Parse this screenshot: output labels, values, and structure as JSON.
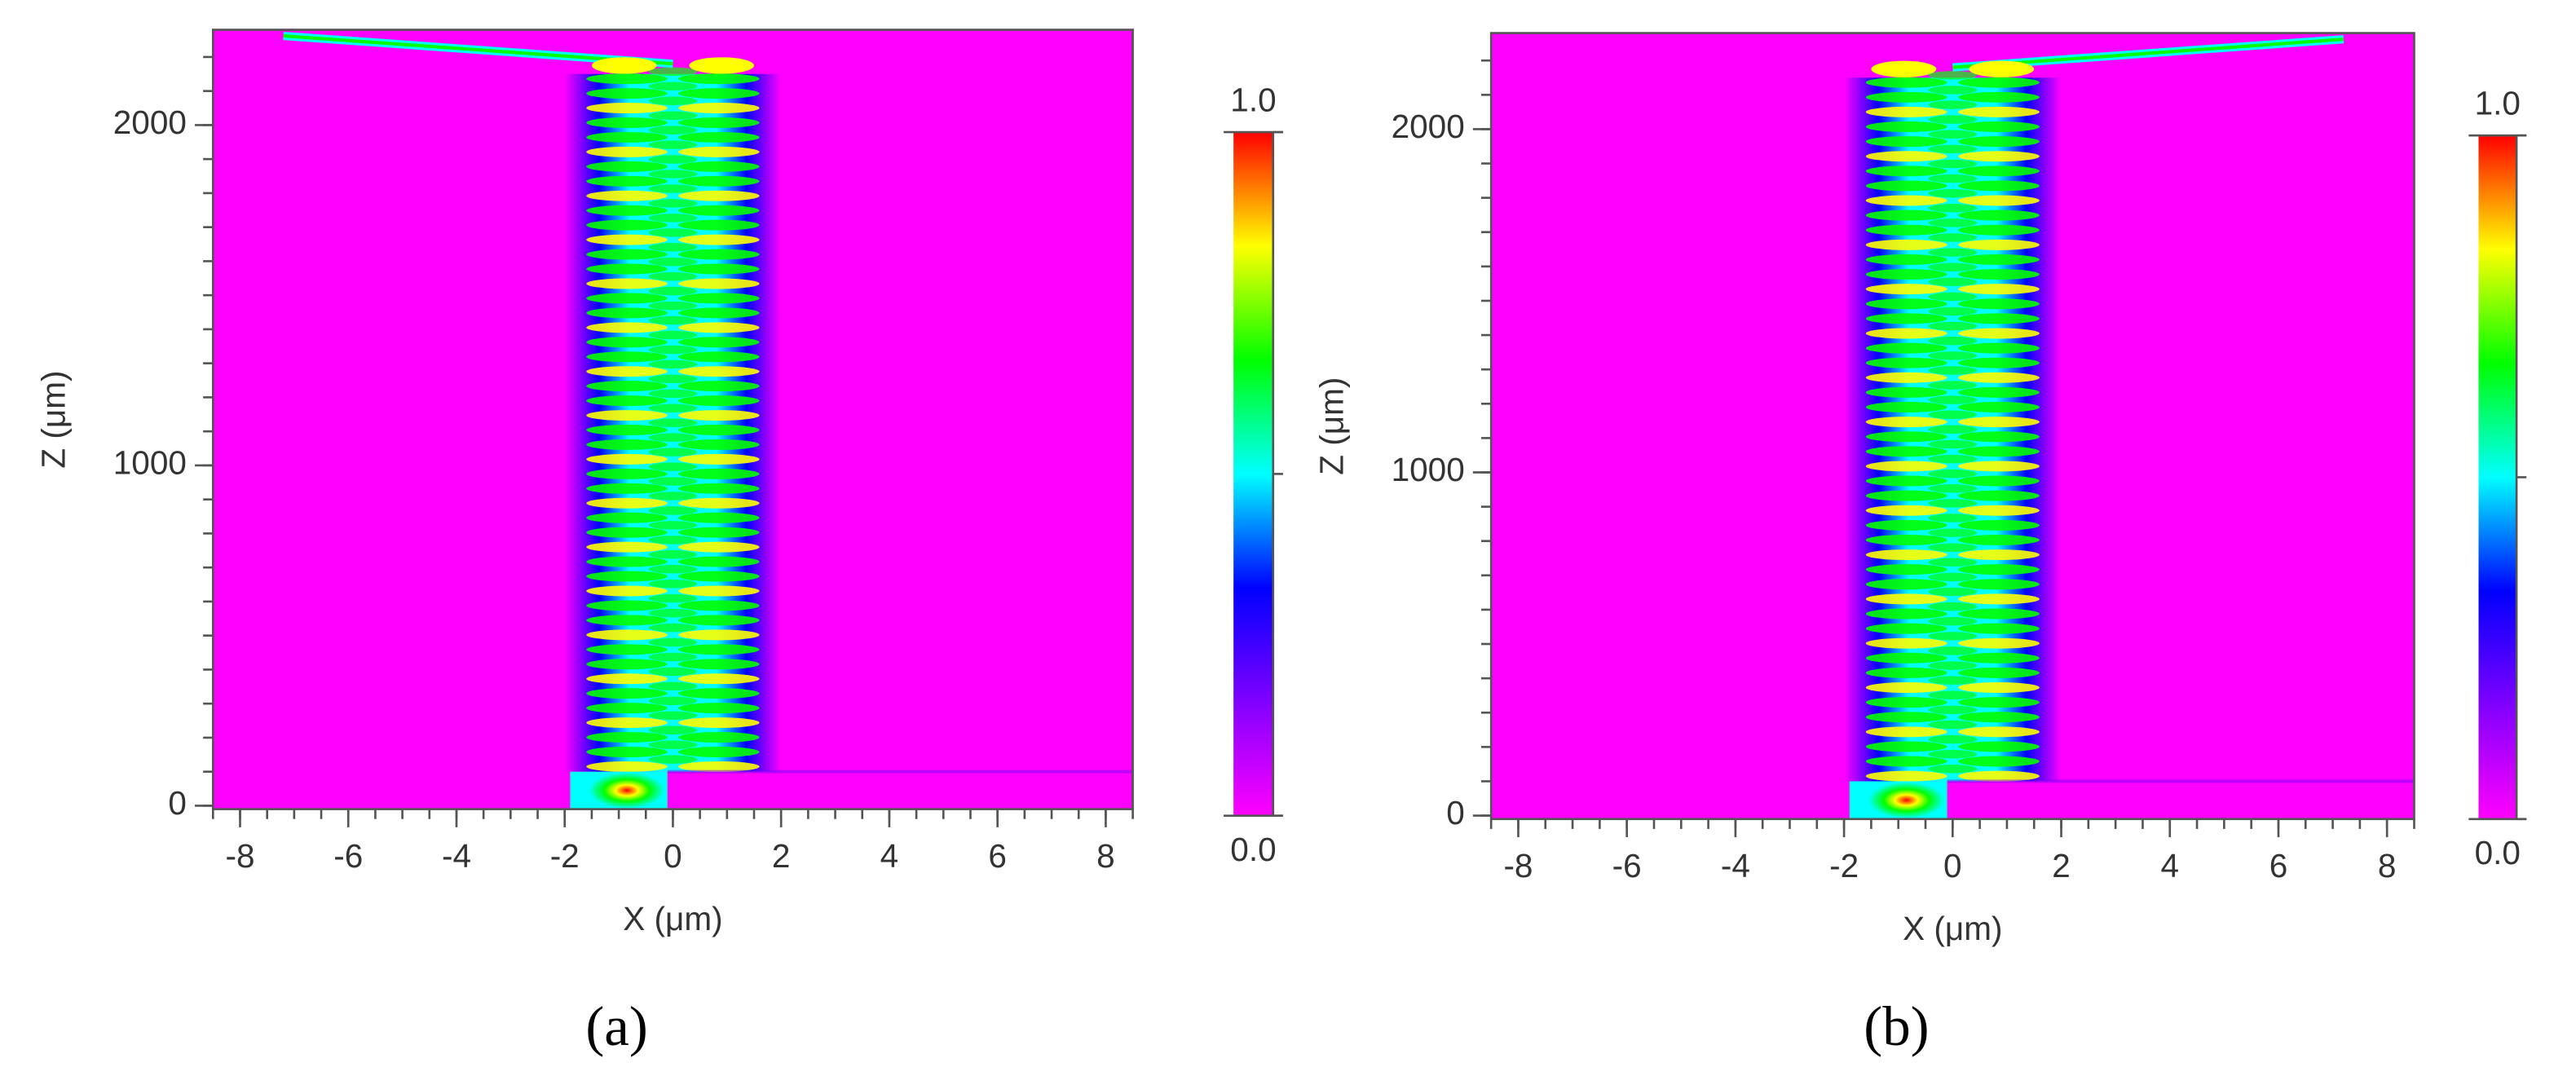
{
  "chart_data": [
    {
      "type": "heatmap",
      "panel_label": "(a)",
      "xlabel": "X (μm)",
      "ylabel": "Z (μm)",
      "xlim": [
        -8.5,
        8.5
      ],
      "xticks": [
        -8,
        -6,
        -4,
        -2,
        0,
        2,
        4,
        6,
        8
      ],
      "xminor": 0.5,
      "ylim": [
        -10,
        2280
      ],
      "yticks": [
        0,
        1000,
        2000
      ],
      "yminor": 100,
      "colorbar": {
        "clim": [
          0,
          1
        ],
        "ticks": [
          {
            "value": 0,
            "label": "0.0"
          },
          {
            "value": 1,
            "label": "1.0"
          }
        ],
        "minor": 0.5,
        "colormap": [
          "#ff00ff",
          "#8000ff",
          "#0000ff",
          "#00ffff",
          "#00ff00",
          "#ffff00",
          "#ff0000"
        ]
      }
    },
    {
      "type": "heatmap",
      "panel_label": "(b)",
      "xlabel": "X (μm)",
      "ylabel": "Z (μm)",
      "xlim": [
        -8.5,
        8.5
      ],
      "xticks": [
        -8,
        -6,
        -4,
        -2,
        0,
        2,
        4,
        6,
        8
      ],
      "xminor": 0.5,
      "ylim": [
        -10,
        2280
      ],
      "yticks": [
        0,
        1000,
        2000
      ],
      "yminor": 100,
      "colorbar": {
        "clim": [
          0,
          1
        ],
        "ticks": [
          {
            "value": 0,
            "label": "0.0"
          },
          {
            "value": 1,
            "label": "1.0"
          }
        ],
        "minor": 0.5,
        "colormap": [
          "#ff00ff",
          "#8000ff",
          "#0000ff",
          "#00ffff",
          "#00ff00",
          "#ffff00",
          "#ff0000"
        ]
      }
    }
  ]
}
